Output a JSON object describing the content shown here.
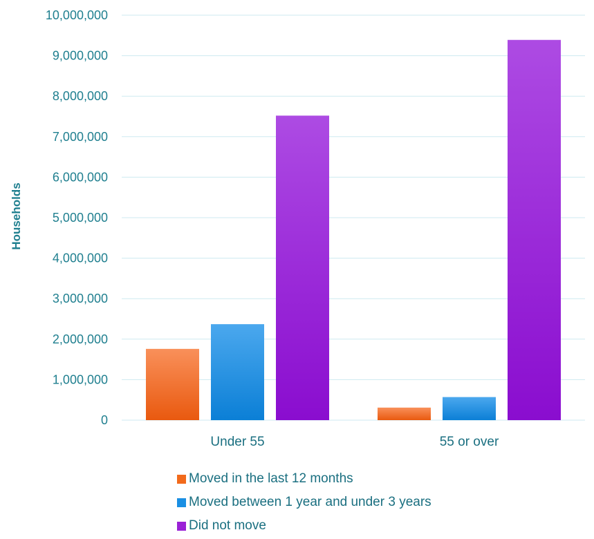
{
  "chart_data": {
    "type": "bar",
    "title": "",
    "xlabel": "",
    "ylabel": "Households",
    "ylim": [
      0,
      10000000
    ],
    "yticks": [
      0,
      1000000,
      2000000,
      3000000,
      4000000,
      5000000,
      6000000,
      7000000,
      8000000,
      9000000,
      10000000
    ],
    "ytick_labels": [
      "0",
      "1,000,000",
      "2,000,000",
      "3,000,000",
      "4,000,000",
      "5,000,000",
      "6,000,000",
      "7,000,000",
      "8,000,000",
      "9,000,000",
      "10,000,000"
    ],
    "categories": [
      "Under 55",
      "55 or over"
    ],
    "series": [
      {
        "name": "Moved in the last 12 months",
        "values": [
          1760000,
          310000
        ],
        "color": "#f26a1b"
      },
      {
        "name": "Moved between 1 year and under 3 years",
        "values": [
          2370000,
          570000
        ],
        "color": "#1a8fe3"
      },
      {
        "name": "Did not move",
        "values": [
          7520000,
          9390000
        ],
        "color": "#9a21d6"
      }
    ],
    "grid": true,
    "legend_position": "bottom"
  }
}
